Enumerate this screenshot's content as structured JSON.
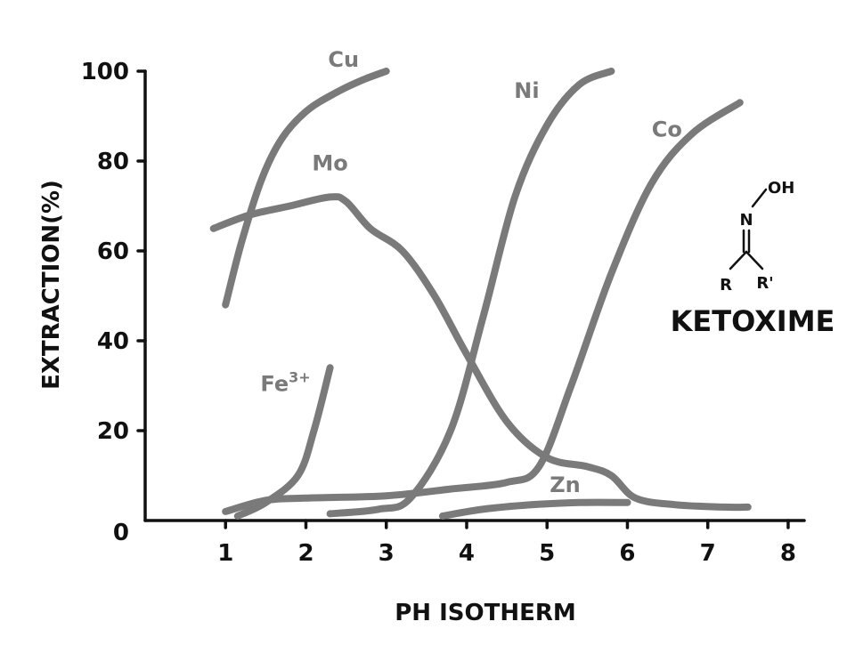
{
  "chart_data": {
    "type": "line",
    "xlabel": "PH ISOTHERM",
    "ylabel": "EXTRACTION(%)",
    "xlim": [
      0,
      8.2
    ],
    "ylim": [
      0,
      100
    ],
    "x_ticks": [
      "1",
      "2",
      "3",
      "4",
      "5",
      "6",
      "7",
      "8"
    ],
    "y_ticks": [
      "0",
      "20",
      "40",
      "60",
      "80",
      "100"
    ],
    "grid": false,
    "colors": {
      "series": "#7a7a7a",
      "axis": "#111111"
    },
    "series": [
      {
        "name": "Cu",
        "x": [
          1.0,
          1.2,
          1.45,
          1.7,
          2.0,
          2.35,
          2.7,
          3.0
        ],
        "y": [
          48,
          62,
          76,
          85,
          91,
          95,
          98,
          100
        ]
      },
      {
        "name": "Mo",
        "x": [
          0.85,
          1.3,
          1.8,
          2.3,
          2.5,
          2.8,
          3.2,
          3.6,
          4.0,
          4.5,
          5.0,
          5.5,
          5.8,
          6.1,
          6.6,
          7.2,
          7.5
        ],
        "y": [
          65,
          68,
          70,
          72,
          71,
          65,
          60,
          50,
          37,
          22,
          14,
          12,
          10,
          5,
          3.5,
          3,
          3
        ]
      },
      {
        "name": "Ni",
        "x": [
          2.3,
          2.9,
          3.3,
          3.8,
          4.2,
          4.6,
          5.0,
          5.4,
          5.8
        ],
        "y": [
          1.5,
          2.5,
          5,
          20,
          45,
          72,
          88,
          97,
          100
        ]
      },
      {
        "name": "Co",
        "x": [
          1.0,
          1.5,
          2.0,
          3.0,
          3.8,
          4.5,
          4.9,
          5.3,
          5.8,
          6.3,
          6.8,
          7.4
        ],
        "y": [
          2,
          4.5,
          5,
          5.5,
          7,
          8.5,
          12,
          30,
          55,
          75,
          86,
          93
        ]
      },
      {
        "name": "Fe3+",
        "x": [
          1.15,
          1.5,
          1.9,
          2.1,
          2.3
        ],
        "y": [
          1,
          4,
          10,
          20,
          34
        ]
      },
      {
        "name": "Zn",
        "x": [
          3.7,
          4.2,
          4.8,
          5.4,
          6.0
        ],
        "y": [
          1,
          2.5,
          3.5,
          4,
          4
        ]
      }
    ]
  },
  "structure": {
    "oh": "OH",
    "n": "N",
    "r": "R",
    "r_prime": "R'",
    "name": "KETOXIME"
  }
}
